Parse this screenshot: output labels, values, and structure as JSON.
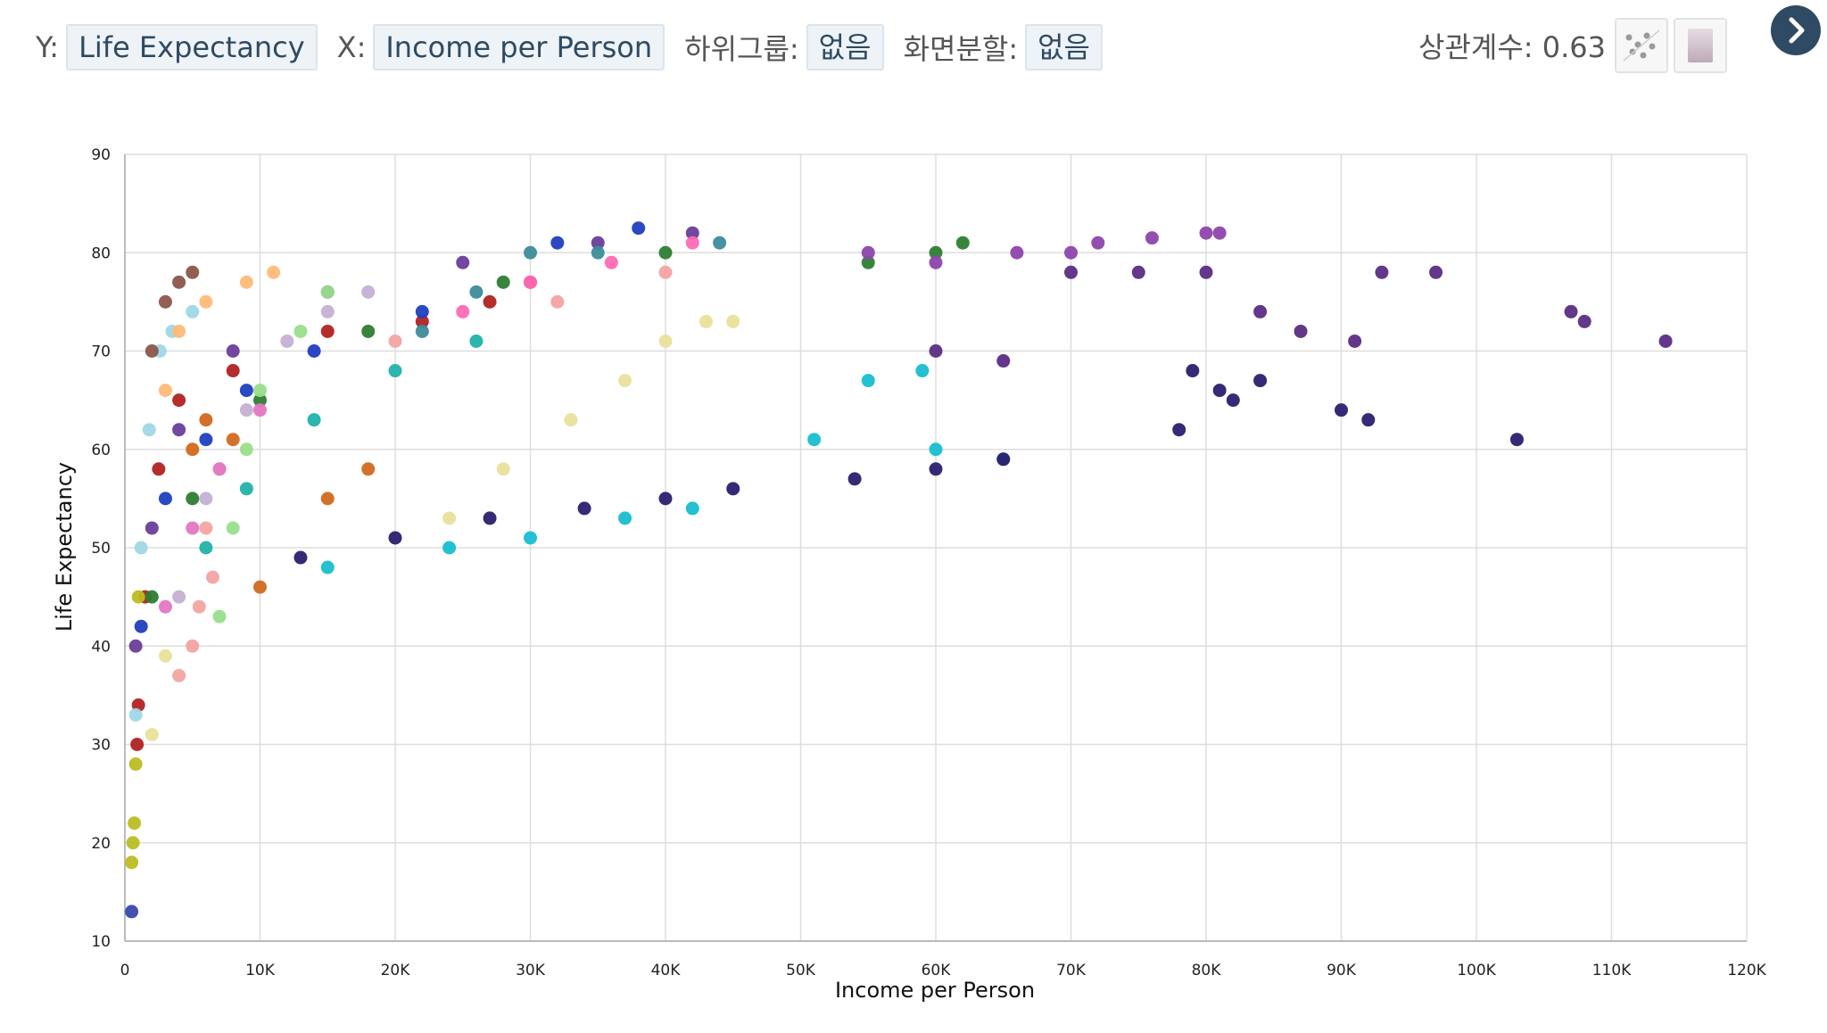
{
  "toolbar": {
    "y_label": "Y:",
    "y_value": "Life Expectancy",
    "x_label": "X:",
    "x_value": "Income per Person",
    "subgroup_label": "하위그룹:",
    "subgroup_value": "없음",
    "split_label": "화면분할:",
    "split_value": "없음",
    "correlation": "상관계수: 0.63"
  },
  "icons": {
    "scatter_toggle": "scatter-icon",
    "gradient_toggle": "gradient-icon",
    "next": "chevron-right-icon"
  },
  "colors": {
    "accent": "#2f4a63",
    "grid": "#dddddd",
    "series_palette": [
      "#b22222",
      "#1f3fbf",
      "#2e7d32",
      "#6a3d9a",
      "#9fd8e6",
      "#f4a3a3",
      "#98df8a",
      "#ffbb78",
      "#c5b0d5",
      "#e377c2",
      "#8c564b",
      "#17becf",
      "#bcbd22",
      "#6b8e23",
      "#d2691e",
      "#3c8c9c",
      "#e8e29a",
      "#8e44ad",
      "#3949ab",
      "#ff69b4",
      "#5b2c83",
      "#20b2aa"
    ]
  },
  "chart_data": {
    "type": "scatter",
    "xlabel": "Income per Person",
    "ylabel": "Life Expectancy",
    "xlim": [
      0,
      120000
    ],
    "ylim": [
      10,
      90
    ],
    "x_ticks": [
      0,
      10000,
      20000,
      30000,
      40000,
      50000,
      60000,
      70000,
      80000,
      90000,
      100000,
      110000,
      120000
    ],
    "x_tick_labels": [
      "0",
      "10K",
      "20K",
      "30K",
      "40K",
      "50K",
      "60K",
      "70K",
      "80K",
      "90K",
      "100K",
      "110K",
      "120K"
    ],
    "y_ticks": [
      10,
      20,
      30,
      40,
      50,
      60,
      70,
      80,
      90
    ],
    "y_tick_labels": [
      "10",
      "20",
      "30",
      "40",
      "50",
      "60",
      "70",
      "80",
      "90"
    ],
    "grid": true,
    "correlation": 0.63,
    "series": [
      {
        "color": "#b22222",
        "points": [
          [
            900,
            30
          ],
          [
            1000,
            34
          ],
          [
            1500,
            45
          ],
          [
            2500,
            58
          ],
          [
            4000,
            65
          ],
          [
            8000,
            68
          ],
          [
            15000,
            72
          ],
          [
            22000,
            73
          ],
          [
            27000,
            75
          ],
          [
            30000,
            77
          ]
        ]
      },
      {
        "color": "#1f3fbf",
        "points": [
          [
            1200,
            42
          ],
          [
            3000,
            55
          ],
          [
            6000,
            61
          ],
          [
            9000,
            66
          ],
          [
            14000,
            70
          ],
          [
            22000,
            74
          ],
          [
            32000,
            81
          ],
          [
            38000,
            82.5
          ]
        ]
      },
      {
        "color": "#2e7d32",
        "points": [
          [
            2000,
            45
          ],
          [
            5000,
            55
          ],
          [
            10000,
            65
          ],
          [
            18000,
            72
          ],
          [
            28000,
            77
          ],
          [
            40000,
            80
          ],
          [
            55000,
            79
          ],
          [
            60000,
            80
          ],
          [
            62000,
            81
          ]
        ]
      },
      {
        "color": "#6a3d9a",
        "points": [
          [
            800,
            40
          ],
          [
            2000,
            52
          ],
          [
            4000,
            62
          ],
          [
            8000,
            70
          ],
          [
            15000,
            76
          ],
          [
            25000,
            79
          ],
          [
            35000,
            81
          ],
          [
            42000,
            82
          ]
        ]
      },
      {
        "color": "#9fd8e6",
        "points": [
          [
            800,
            33
          ],
          [
            1200,
            50
          ],
          [
            1800,
            62
          ],
          [
            2600,
            70
          ],
          [
            3500,
            72
          ],
          [
            5000,
            74
          ]
        ]
      },
      {
        "color": "#f4a3a3",
        "points": [
          [
            4000,
            37
          ],
          [
            5000,
            40
          ],
          [
            5500,
            44
          ],
          [
            6500,
            47
          ],
          [
            6000,
            52
          ],
          [
            7000,
            58
          ],
          [
            20000,
            71
          ],
          [
            32000,
            75
          ],
          [
            40000,
            78
          ]
        ]
      },
      {
        "color": "#98df8a",
        "points": [
          [
            7000,
            43
          ],
          [
            8000,
            52
          ],
          [
            9000,
            60
          ],
          [
            10000,
            66
          ],
          [
            13000,
            72
          ],
          [
            15000,
            76
          ]
        ]
      },
      {
        "color": "#ffbb78",
        "points": [
          [
            3000,
            66
          ],
          [
            4000,
            72
          ],
          [
            6000,
            75
          ],
          [
            9000,
            77
          ],
          [
            11000,
            78
          ]
        ]
      },
      {
        "color": "#c5b0d5",
        "points": [
          [
            4000,
            45
          ],
          [
            6000,
            55
          ],
          [
            9000,
            64
          ],
          [
            12000,
            71
          ],
          [
            15000,
            74
          ],
          [
            18000,
            76
          ]
        ]
      },
      {
        "color": "#e377c2",
        "points": [
          [
            3000,
            44
          ],
          [
            5000,
            52
          ],
          [
            7000,
            58
          ],
          [
            10000,
            64
          ]
        ]
      },
      {
        "color": "#8c564b",
        "points": [
          [
            2000,
            70
          ],
          [
            3000,
            75
          ],
          [
            4000,
            77
          ],
          [
            5000,
            78
          ]
        ]
      },
      {
        "color": "#d2691e",
        "points": [
          [
            5000,
            60
          ],
          [
            6000,
            63
          ],
          [
            8000,
            61
          ],
          [
            10000,
            46
          ],
          [
            15000,
            55
          ],
          [
            18000,
            58
          ]
        ]
      },
      {
        "color": "#17becf",
        "points": [
          [
            15000,
            48
          ],
          [
            24000,
            50
          ],
          [
            30000,
            51
          ],
          [
            37000,
            53
          ],
          [
            42000,
            54
          ],
          [
            51000,
            61
          ],
          [
            55000,
            67
          ],
          [
            59000,
            68
          ],
          [
            60000,
            60
          ],
          [
            65000,
            59
          ]
        ]
      },
      {
        "color": "#bcbd22",
        "points": [
          [
            500,
            18
          ],
          [
            600,
            20
          ],
          [
            700,
            22
          ],
          [
            800,
            28
          ],
          [
            1000,
            45
          ]
        ]
      },
      {
        "color": "#e8e29a",
        "points": [
          [
            2000,
            31
          ],
          [
            3000,
            39
          ],
          [
            24000,
            53
          ],
          [
            28000,
            58
          ],
          [
            33000,
            63
          ],
          [
            37000,
            67
          ],
          [
            40000,
            71
          ],
          [
            43000,
            73
          ],
          [
            45000,
            73
          ]
        ]
      },
      {
        "color": "#3c8c9c",
        "points": [
          [
            22000,
            72
          ],
          [
            26000,
            76
          ],
          [
            30000,
            80
          ],
          [
            35000,
            80
          ],
          [
            44000,
            81
          ]
        ]
      },
      {
        "color": "#8e44ad",
        "points": [
          [
            55000,
            80
          ],
          [
            60000,
            79
          ],
          [
            66000,
            80
          ],
          [
            70000,
            80
          ],
          [
            72000,
            81
          ],
          [
            76000,
            81.5
          ],
          [
            80000,
            82
          ],
          [
            81000,
            82
          ]
        ]
      },
      {
        "color": "#5b2c83",
        "points": [
          [
            60000,
            70
          ],
          [
            65000,
            69
          ],
          [
            70000,
            78
          ],
          [
            75000,
            78
          ],
          [
            80000,
            78
          ],
          [
            84000,
            74
          ],
          [
            87000,
            72
          ],
          [
            91000,
            71
          ],
          [
            93000,
            78
          ],
          [
            97000,
            78
          ],
          [
            107000,
            74
          ],
          [
            108000,
            73
          ],
          [
            114000,
            71
          ]
        ]
      },
      {
        "color": "#2a1f6e",
        "points": [
          [
            13000,
            49
          ],
          [
            20000,
            51
          ],
          [
            27000,
            53
          ],
          [
            34000,
            54
          ],
          [
            40000,
            55
          ],
          [
            45000,
            56
          ],
          [
            54000,
            57
          ],
          [
            60000,
            58
          ],
          [
            65000,
            59
          ],
          [
            78000,
            62
          ],
          [
            79000,
            68
          ],
          [
            81000,
            66
          ],
          [
            82000,
            65
          ],
          [
            84000,
            67
          ],
          [
            90000,
            64
          ],
          [
            92000,
            63
          ],
          [
            103000,
            61
          ]
        ]
      },
      {
        "color": "#3949ab",
        "points": [
          [
            500,
            13
          ]
        ]
      },
      {
        "color": "#20b2aa",
        "points": [
          [
            6000,
            50
          ],
          [
            9000,
            56
          ],
          [
            14000,
            63
          ],
          [
            20000,
            68
          ],
          [
            26000,
            71
          ]
        ]
      },
      {
        "color": "#ff69b4",
        "points": [
          [
            25000,
            74
          ],
          [
            30000,
            77
          ],
          [
            36000,
            79
          ],
          [
            42000,
            81
          ]
        ]
      }
    ]
  }
}
